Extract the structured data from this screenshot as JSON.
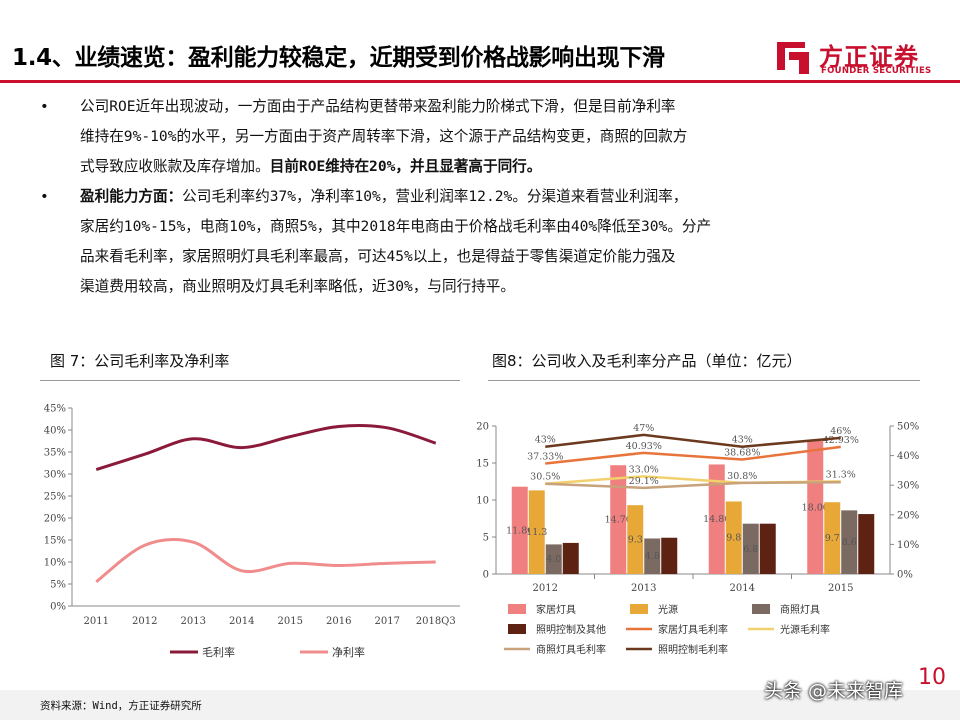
{
  "header": {
    "title": "1.4、业绩速览：盈利能力较稳定，近期受到价格战影响出现下滑",
    "logo_cn": "方正证券",
    "logo_en": "FOUNDER SECURITIES",
    "accent_color": "#c8102e"
  },
  "bullets": [
    {
      "lines": [
        "公司ROE近年出现波动，一方面由于产品结构更替带来盈利能力阶梯式下滑，但是目前净利率",
        "维持在9%-10%的水平，另一方面由于资产周转率下滑，这个源于产品结构变更，商照的回款方"
      ],
      "last_line_plain": "式导致应收账款及库存增加。",
      "last_line_bold": "目前ROE维持在20%，并且显著高于同行。"
    },
    {
      "lead_bold": "盈利能力方面：",
      "first_line_rest": "公司毛利率约37%，净利率10%，营业利润率12.2%。分渠道来看营业利润率，",
      "lines": [
        "家居约10%-15%，电商10%，商照5%，其中2018年电商由于价格战毛利率由40%降低至30%。分产",
        "品来看毛利率，家居照明灯具毛利率最高，可达45%以上，也是得益于零售渠道定价能力强及",
        "渠道费用较高，商业照明及灯具毛利率略低，近30%，与同行持平。"
      ]
    }
  ],
  "figures": {
    "left_caption": "图 7：公司毛利率及净利率",
    "right_caption": "图8：公司收入及毛利率分产品（单位：亿元）"
  },
  "chart_data": [
    {
      "type": "line",
      "categories": [
        "2011",
        "2012",
        "2013",
        "2014",
        "2015",
        "2016",
        "2017",
        "2018Q3"
      ],
      "series": [
        {
          "name": "毛利率",
          "color": "#8b1a3a",
          "values": [
            31,
            34.5,
            38,
            36,
            38.5,
            40.8,
            40.5,
            37
          ]
        },
        {
          "name": "净利率",
          "color": "#f08c8c",
          "values": [
            5.5,
            13.8,
            14.5,
            8,
            9.7,
            9.2,
            9.7,
            10
          ]
        }
      ],
      "yticks": [
        "0%",
        "5%",
        "10%",
        "15%",
        "20%",
        "25%",
        "30%",
        "35%",
        "40%",
        "45%"
      ],
      "ylim": [
        0,
        45
      ],
      "grid": false,
      "legend": "bottom"
    },
    {
      "type": "bar",
      "categories": [
        "2012",
        "2013",
        "2014",
        "2015"
      ],
      "left_yticks": [
        "0",
        "5",
        "10",
        "15",
        "20"
      ],
      "right_yticks": [
        "0%",
        "10%",
        "20%",
        "30%",
        "40%",
        "50%"
      ],
      "ylim": [
        0,
        20
      ],
      "y2lim": [
        0,
        50
      ],
      "bar_series": [
        {
          "name": "家居灯具",
          "color": "#f07f7f",
          "values": [
            11.8,
            14.7,
            14.8,
            18
          ],
          "labels": [
            "11.80",
            "14.70",
            "14.80",
            "18.00"
          ]
        },
        {
          "name": "光源",
          "color": "#e8a838",
          "values": [
            11.3,
            9.3,
            9.8,
            9.7
          ],
          "labels": [
            "11.3",
            "9.3",
            "9.8",
            "9.7"
          ]
        },
        {
          "name": "商照灯具",
          "color": "#7b6a62",
          "values": [
            4.0,
            4.8,
            6.8,
            8.6
          ],
          "labels": [
            "4.0",
            "4.8",
            "6.8",
            "8.6"
          ]
        },
        {
          "name": "照明控制及其他",
          "color": "#5e2213",
          "values": [
            4.2,
            4.9,
            6.8,
            8.1
          ],
          "labels": [
            "",
            "",
            "",
            ""
          ]
        }
      ],
      "line_series": [
        {
          "name": "家居灯具毛利率",
          "color": "#e8743b",
          "values": [
            37.33,
            40.93,
            38.68,
            42.93
          ],
          "labels": [
            "37.33%",
            "40.93%",
            "38.68%",
            "42.93%"
          ]
        },
        {
          "name": "光源毛利率",
          "color": "#f2d06b",
          "values": [
            30.5,
            33.0,
            30.8,
            31.3
          ],
          "labels": [
            "30.5%",
            "33.0%",
            "30.8%",
            "31.3%"
          ]
        },
        {
          "name": "商照灯具毛利率",
          "color": "#c8a27a",
          "values": [
            30.5,
            29.1,
            30.8,
            31.0
          ],
          "labels": [
            "",
            "29.1%",
            "",
            ""
          ]
        },
        {
          "name": "照明控制毛利率",
          "color": "#6b3a1e",
          "values": [
            43,
            47,
            43,
            46
          ],
          "labels": [
            "43%",
            "47%",
            "43%",
            "46%"
          ]
        }
      ],
      "legend": "bottom"
    }
  ],
  "footer": {
    "source": "资料来源：Wind，方正证券研究所",
    "page_number": "10",
    "watermark": "头条 @未来智库"
  }
}
